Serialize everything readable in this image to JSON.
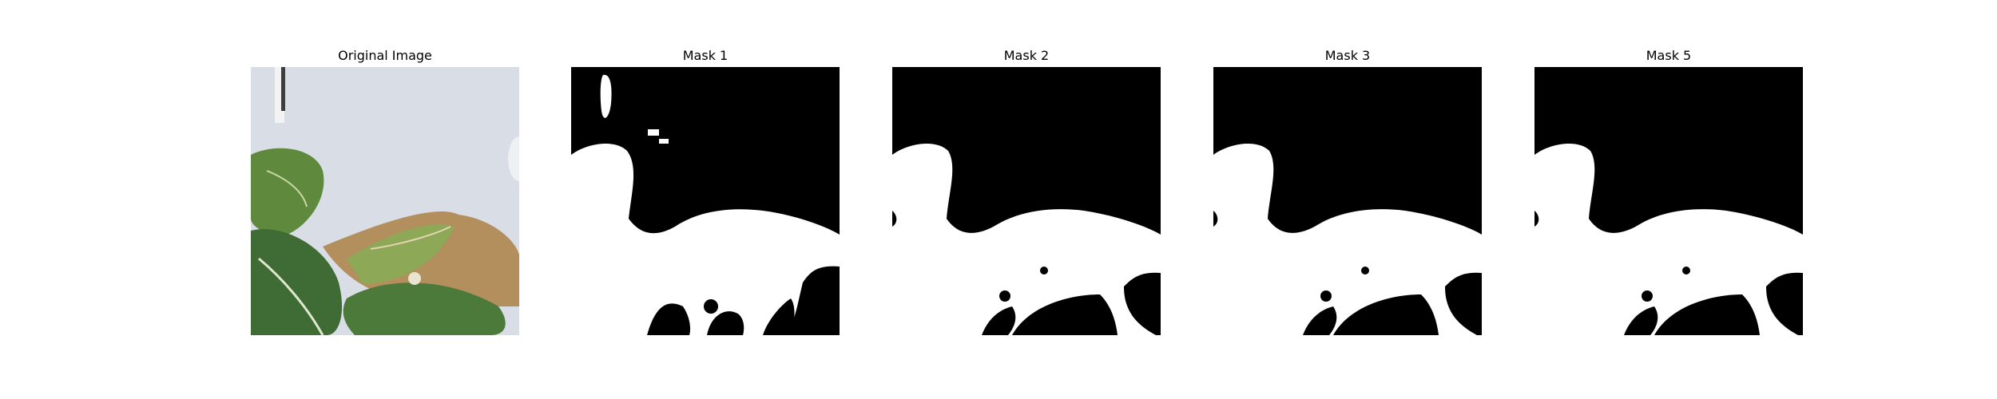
{
  "panels": [
    {
      "title": "Original Image"
    },
    {
      "title": "Mask 1"
    },
    {
      "title": "Mask 2"
    },
    {
      "title": "Mask 3"
    },
    {
      "title": "Mask 5"
    }
  ],
  "colors": {
    "background": "#ffffff",
    "mask_background": "#000000",
    "mask_foreground": "#ffffff",
    "wall": "#d9dde6",
    "leaf_dark": "#3f6b34",
    "leaf_mid": "#5f8a3e",
    "leaf_light": "#9cb364",
    "leaf_brown": "#b48f5e"
  }
}
